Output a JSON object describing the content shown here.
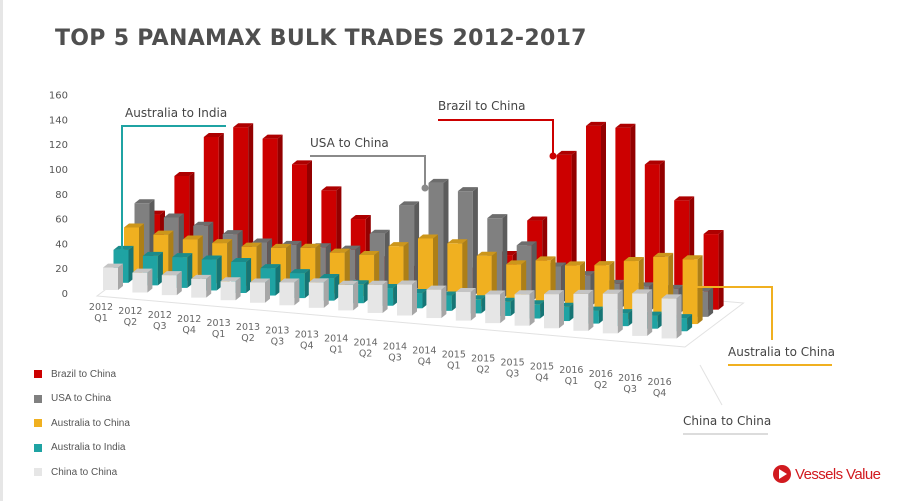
{
  "title": "TOP 5 PANAMAX BULK TRADES 2012-2017",
  "brand": "Vessels Value",
  "callouts": {
    "australia_india": "Australia to India",
    "usa_china": "USA to China",
    "brazil_china": "Brazil to China",
    "australia_china": "Australia to China",
    "china_china": "China to China"
  },
  "legend": [
    {
      "label": "Brazil to China",
      "color": "#cc0000"
    },
    {
      "label": "USA to China",
      "color": "#808080"
    },
    {
      "label": "Australia to China",
      "color": "#f0b020"
    },
    {
      "label": "Australia to India",
      "color": "#1fa3a3"
    },
    {
      "label": "China to China",
      "color": "#e6e6e6"
    }
  ],
  "chart_data": {
    "type": "bar",
    "subtype": "3d-clustered-depth",
    "title": "TOP 5 PANAMAX BULK TRADES 2012-2017",
    "xlabel": "",
    "ylabel": "",
    "ylim": [
      0,
      160
    ],
    "yticks": [
      0,
      20,
      40,
      60,
      80,
      100,
      120,
      140,
      160
    ],
    "categories": [
      "2012 Q1",
      "2012 Q2",
      "2012 Q3",
      "2012 Q4",
      "2013 Q1",
      "2013 Q2",
      "2013 Q3",
      "2013 Q4",
      "2014 Q1",
      "2014 Q2",
      "2014 Q3",
      "2014 Q4",
      "2015 Q1",
      "2015 Q2",
      "2015 Q3",
      "2015 Q4",
      "2016 Q1",
      "2016 Q2",
      "2016 Q3",
      "2016 Q4"
    ],
    "series": [
      {
        "name": "Brazil to China",
        "color": "#cc0000",
        "values": [
          40,
          75,
          110,
          120,
          112,
          92,
          72,
          50,
          18,
          12,
          8,
          15,
          30,
          60,
          115,
          140,
          140,
          112,
          85,
          60
        ]
      },
      {
        "name": "USA to China",
        "color": "#808080",
        "values": [
          55,
          45,
          40,
          35,
          30,
          30,
          30,
          30,
          45,
          70,
          90,
          85,
          65,
          45,
          30,
          25,
          20,
          20,
          20,
          20
        ]
      },
      {
        "name": "Australia to China",
        "color": "#f0b020",
        "values": [
          40,
          36,
          34,
          33,
          32,
          33,
          35,
          33,
          33,
          42,
          50,
          48,
          40,
          35,
          40,
          38,
          40,
          45,
          50,
          50
        ]
      },
      {
        "name": "Australia to India",
        "color": "#1fa3a3",
        "values": [
          27,
          24,
          25,
          25,
          25,
          22,
          20,
          18,
          15,
          14,
          12,
          12,
          11,
          11,
          11,
          11,
          10,
          10,
          10,
          10
        ]
      },
      {
        "name": "China to China",
        "color": "#e6e6e6",
        "values": [
          18,
          16,
          16,
          15,
          15,
          16,
          18,
          20,
          20,
          22,
          24,
          22,
          22,
          22,
          24,
          26,
          28,
          30,
          32,
          30
        ]
      }
    ],
    "legend_position": "bottom-left",
    "grid": false
  }
}
